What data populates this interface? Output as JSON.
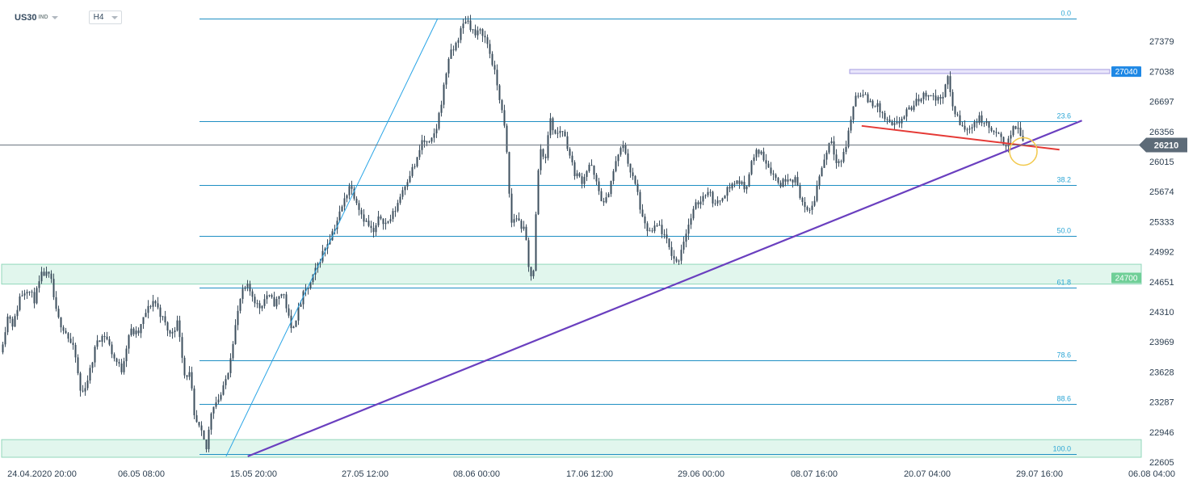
{
  "toolbar": {
    "symbol": "US30",
    "exchange": "IND",
    "timeframe": "H4"
  },
  "colors": {
    "background": "#ffffff",
    "candle": "#3d4f5e",
    "fib_line": "#1f8fc3",
    "fib_text": "#2aa5d5",
    "trend_line_purple": "#6a3fbf",
    "fan_line_blue": "#2aa5e6",
    "resistance_red": "#e53935",
    "zone_fill": "#dcf5ea",
    "zone_border": "#7fd1b0",
    "box_fill": "#e9e6fb",
    "box_border": "#a49be0",
    "price_badge_blue": "#1e88e5",
    "price_badge_green": "#6fcf97",
    "current_price_badge": "#5d6b78",
    "highlight_circle": "#f2c94c"
  },
  "chart_data": {
    "type": "candlestick",
    "instrument": "US30",
    "timeframe": "H4",
    "ylim": [
      22605,
      27720
    ],
    "y_ticks": [
      27379,
      27038,
      26697,
      26356,
      26015,
      25674,
      25333,
      24992,
      24651,
      24310,
      23969,
      23628,
      23287,
      22946,
      22605
    ],
    "x_ticks": [
      "24.04.2020  20:00",
      "06.05  08:00",
      "15.05  20:00",
      "27.05  12:00",
      "08.06  00:00",
      "17.06  12:00",
      "29.06  00:00",
      "08.07  16:00",
      "20.07  04:00",
      "29.07  16:00",
      "06.08  04:00"
    ],
    "current_price": "26210",
    "fibonacci": {
      "price_at_0": 27640,
      "price_at_100": 22700,
      "levels": [
        {
          "ratio": 0.0,
          "label": "0.0"
        },
        {
          "ratio": 0.236,
          "label": "23.6"
        },
        {
          "ratio": 0.382,
          "label": "38.2"
        },
        {
          "ratio": 0.5,
          "label": "50.0"
        },
        {
          "ratio": 0.618,
          "label": "61.8"
        },
        {
          "ratio": 0.786,
          "label": "78.6"
        },
        {
          "ratio": 0.886,
          "label": "88.6"
        },
        {
          "ratio": 1.0,
          "label": "100.0"
        }
      ]
    },
    "price_markers": [
      {
        "label": "27040",
        "price": 27040,
        "kind": "resistance"
      },
      {
        "label": "24700",
        "price": 24700,
        "kind": "support"
      }
    ],
    "zones": [
      {
        "from": 24625,
        "to": 24850
      },
      {
        "from": 22660,
        "to": 22860
      }
    ],
    "resistance_box": {
      "price_low": 27020,
      "price_high": 27060
    },
    "lines": [
      {
        "name": "rising-trendline",
        "from": {
          "x": "15.05 08:00",
          "price": 22670
        },
        "to": {
          "x": "01.08 12:00",
          "price": 26480
        }
      },
      {
        "name": "fan-line",
        "from": {
          "x": "13.05 12:00",
          "price": 22670
        },
        "to": {
          "x": "04.06 00:00",
          "price": 27640
        }
      },
      {
        "name": "short-term-resistance",
        "from": {
          "x": "13.07 12:00",
          "price": 26420
        },
        "to": {
          "x": "31.07 00:00",
          "price": 26150
        }
      }
    ],
    "price_path": [
      [
        0,
        23850
      ],
      [
        10,
        24300
      ],
      [
        16,
        24150
      ],
      [
        24,
        24480
      ],
      [
        33,
        24580
      ],
      [
        42,
        24450
      ],
      [
        52,
        24750
      ],
      [
        62,
        24700
      ],
      [
        70,
        24250
      ],
      [
        80,
        24100
      ],
      [
        92,
        23850
      ],
      [
        100,
        23350
      ],
      [
        110,
        23600
      ],
      [
        120,
        24000
      ],
      [
        130,
        24050
      ],
      [
        140,
        23800
      ],
      [
        150,
        23650
      ],
      [
        160,
        24100
      ],
      [
        170,
        24050
      ],
      [
        180,
        24300
      ],
      [
        190,
        24450
      ],
      [
        200,
        24250
      ],
      [
        210,
        24050
      ],
      [
        220,
        24200
      ],
      [
        228,
        23600
      ],
      [
        235,
        23600
      ],
      [
        240,
        23100
      ],
      [
        248,
        22950
      ],
      [
        255,
        22750
      ],
      [
        262,
        23250
      ],
      [
        268,
        23300
      ],
      [
        275,
        23400
      ],
      [
        282,
        23650
      ],
      [
        290,
        24100
      ],
      [
        298,
        24500
      ],
      [
        305,
        24600
      ],
      [
        312,
        24500
      ],
      [
        320,
        24350
      ],
      [
        330,
        24500
      ],
      [
        340,
        24400
      ],
      [
        350,
        24550
      ],
      [
        360,
        24100
      ],
      [
        368,
        24300
      ],
      [
        375,
        24500
      ],
      [
        385,
        24650
      ],
      [
        395,
        24900
      ],
      [
        405,
        25100
      ],
      [
        415,
        25300
      ],
      [
        425,
        25550
      ],
      [
        432,
        25750
      ],
      [
        440,
        25600
      ],
      [
        448,
        25400
      ],
      [
        455,
        25300
      ],
      [
        462,
        25200
      ],
      [
        470,
        25400
      ],
      [
        478,
        25300
      ],
      [
        488,
        25450
      ],
      [
        498,
        25700
      ],
      [
        508,
        25900
      ],
      [
        515,
        26000
      ],
      [
        522,
        26250
      ],
      [
        532,
        26200
      ],
      [
        540,
        26400
      ],
      [
        548,
        26800
      ],
      [
        555,
        27200
      ],
      [
        562,
        27300
      ],
      [
        570,
        27500
      ],
      [
        577,
        27650
      ],
      [
        582,
        27550
      ],
      [
        588,
        27450
      ],
      [
        596,
        27500
      ],
      [
        603,
        27350
      ],
      [
        610,
        27100
      ],
      [
        617,
        26800
      ],
      [
        624,
        26400
      ],
      [
        628,
        26000
      ],
      [
        632,
        25300
      ],
      [
        638,
        25400
      ],
      [
        644,
        25300
      ],
      [
        650,
        25200
      ],
      [
        655,
        24700
      ],
      [
        660,
        24800
      ],
      [
        664,
        25600
      ],
      [
        668,
        26200
      ],
      [
        674,
        26000
      ],
      [
        680,
        26500
      ],
      [
        688,
        26300
      ],
      [
        695,
        26400
      ],
      [
        702,
        26200
      ],
      [
        710,
        25900
      ],
      [
        720,
        25800
      ],
      [
        730,
        26000
      ],
      [
        740,
        25700
      ],
      [
        748,
        25500
      ],
      [
        756,
        25800
      ],
      [
        765,
        26100
      ],
      [
        772,
        26200
      ],
      [
        780,
        25900
      ],
      [
        788,
        25700
      ],
      [
        796,
        25300
      ],
      [
        805,
        25200
      ],
      [
        815,
        25300
      ],
      [
        825,
        25100
      ],
      [
        832,
        24950
      ],
      [
        838,
        24850
      ],
      [
        845,
        25100
      ],
      [
        852,
        25300
      ],
      [
        860,
        25500
      ],
      [
        868,
        25600
      ],
      [
        876,
        25700
      ],
      [
        886,
        25500
      ],
      [
        895,
        25650
      ],
      [
        905,
        25750
      ],
      [
        914,
        25800
      ],
      [
        922,
        25700
      ],
      [
        930,
        26000
      ],
      [
        938,
        26150
      ],
      [
        946,
        26050
      ],
      [
        955,
        25900
      ],
      [
        965,
        25750
      ],
      [
        975,
        25850
      ],
      [
        985,
        25800
      ],
      [
        993,
        25550
      ],
      [
        1000,
        25400
      ],
      [
        1008,
        25600
      ],
      [
        1015,
        25900
      ],
      [
        1022,
        26100
      ],
      [
        1028,
        26300
      ],
      [
        1034,
        26050
      ],
      [
        1040,
        26000
      ],
      [
        1046,
        26150
      ],
      [
        1052,
        26450
      ],
      [
        1058,
        26750
      ],
      [
        1065,
        26800
      ],
      [
        1075,
        26700
      ],
      [
        1085,
        26650
      ],
      [
        1095,
        26500
      ],
      [
        1105,
        26400
      ],
      [
        1112,
        26450
      ],
      [
        1120,
        26550
      ],
      [
        1130,
        26650
      ],
      [
        1140,
        26750
      ],
      [
        1150,
        26800
      ],
      [
        1160,
        26700
      ],
      [
        1168,
        26800
      ],
      [
        1173,
        26950
      ],
      [
        1180,
        26600
      ],
      [
        1188,
        26450
      ],
      [
        1196,
        26350
      ],
      [
        1204,
        26450
      ],
      [
        1212,
        26500
      ],
      [
        1220,
        26450
      ],
      [
        1228,
        26350
      ],
      [
        1236,
        26300
      ],
      [
        1244,
        26200
      ],
      [
        1252,
        26350
      ],
      [
        1258,
        26420
      ],
      [
        1263,
        26330
      ],
      [
        1267,
        26210
      ]
    ]
  }
}
